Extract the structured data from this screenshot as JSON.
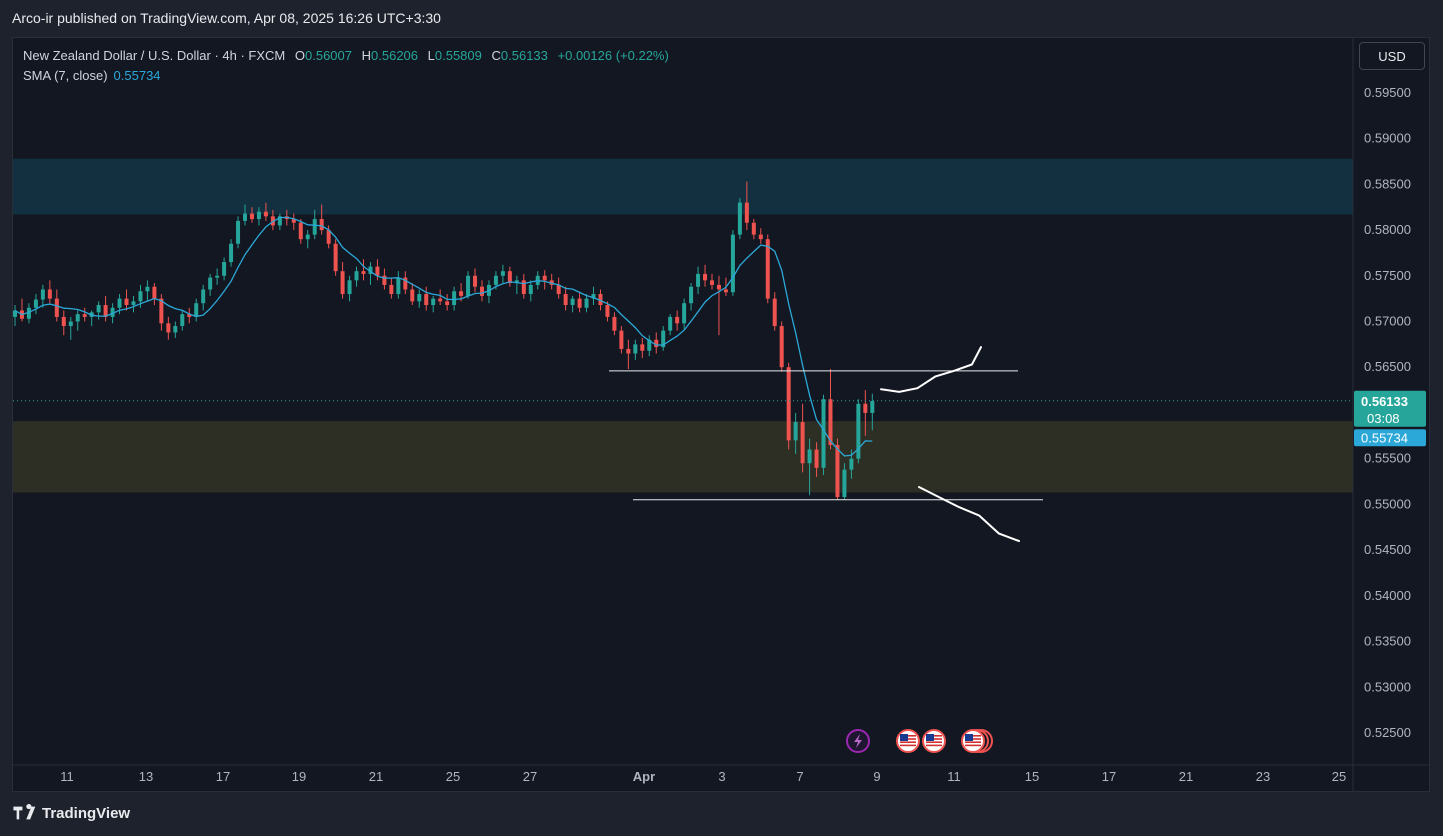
{
  "header": {
    "publish_text": "Arco-ir published on TradingView.com, Apr 08, 2025 16:26 UTC+3:30"
  },
  "legend": {
    "symbol": "New Zealand Dollar / U.S. Dollar · 4h · FXCM",
    "open_label": "O",
    "open": "0.56007",
    "high_label": "H",
    "high": "0.56206",
    "low_label": "L",
    "low": "0.55809",
    "close_label": "C",
    "close": "0.56133",
    "change": "+0.00126 (+0.22%)",
    "sma_label": "SMA (7, close)",
    "sma_value": "0.55734"
  },
  "currency_button": "USD",
  "footer": {
    "brand": "TradingView"
  },
  "colors": {
    "bg": "#131722",
    "up": "#26a69a",
    "down": "#ef5350",
    "sma": "#2ba8d8",
    "supply_zone": "#12303f",
    "demand_zone": "#2d2e24"
  },
  "chart_data": {
    "type": "candlestick",
    "timeframe": "4h",
    "y_axis": {
      "range": [
        0.5215,
        0.601
      ],
      "ticks": [
        "0.59500",
        "0.59000",
        "0.58500",
        "0.58000",
        "0.57500",
        "0.57000",
        "0.56500",
        "0.56000",
        "0.55500",
        "0.55000",
        "0.54500",
        "0.54000",
        "0.53500",
        "0.53000",
        "0.52500"
      ]
    },
    "x_axis": {
      "ticks": [
        "11",
        "13",
        "17",
        "19",
        "21",
        "25",
        "27",
        "Apr",
        "3",
        "7",
        "9",
        "11",
        "15",
        "17",
        "21",
        "23",
        "25"
      ]
    },
    "price_label": {
      "price": "0.56133",
      "countdown": "03:08"
    },
    "sma_label": "0.55734",
    "zones": [
      {
        "name": "supply",
        "top": 0.5878,
        "bottom": 0.5817
      },
      {
        "name": "demand",
        "top": 0.5591,
        "bottom": 0.5513
      }
    ],
    "levels": [
      {
        "name": "resistance",
        "price": 0.5646
      },
      {
        "name": "support",
        "price": 0.5505
      }
    ],
    "projection": {
      "up_path": [
        [
          0,
          0.5626
        ],
        [
          1,
          0.5623
        ],
        [
          2,
          0.5627
        ],
        [
          3,
          0.564
        ],
        [
          4,
          0.5646
        ],
        [
          5,
          0.5653
        ],
        [
          5.5,
          0.5672
        ]
      ],
      "down_path": [
        [
          0,
          0.5519
        ],
        [
          1,
          0.5508
        ],
        [
          2,
          0.5497
        ],
        [
          3,
          0.5488
        ],
        [
          4,
          0.5468
        ],
        [
          5,
          0.546
        ]
      ]
    },
    "events": [
      "lightning",
      "us-flag",
      "us-flag",
      "us-flag-stack"
    ],
    "candles": [
      [
        0.5705,
        0.5718,
        0.5695,
        0.5712
      ],
      [
        0.5712,
        0.5725,
        0.57,
        0.5703
      ],
      [
        0.5703,
        0.572,
        0.5698,
        0.5715
      ],
      [
        0.5715,
        0.573,
        0.5708,
        0.5724
      ],
      [
        0.5724,
        0.574,
        0.5715,
        0.5735
      ],
      [
        0.5735,
        0.5745,
        0.572,
        0.5725
      ],
      [
        0.5725,
        0.5735,
        0.57,
        0.5705
      ],
      [
        0.5705,
        0.5712,
        0.5685,
        0.5695
      ],
      [
        0.5695,
        0.5705,
        0.568,
        0.57
      ],
      [
        0.57,
        0.5712,
        0.569,
        0.5708
      ],
      [
        0.5708,
        0.5715,
        0.57,
        0.5705
      ],
      [
        0.5705,
        0.5712,
        0.5695,
        0.571
      ],
      [
        0.571,
        0.5722,
        0.5702,
        0.5718
      ],
      [
        0.5718,
        0.5728,
        0.57,
        0.5705
      ],
      [
        0.5705,
        0.572,
        0.5698,
        0.5715
      ],
      [
        0.5715,
        0.573,
        0.5708,
        0.5725
      ],
      [
        0.5725,
        0.5735,
        0.5712,
        0.5718
      ],
      [
        0.5718,
        0.5728,
        0.571,
        0.5722
      ],
      [
        0.5722,
        0.574,
        0.5715,
        0.5733
      ],
      [
        0.5733,
        0.5745,
        0.5722,
        0.5738
      ],
      [
        0.5738,
        0.5742,
        0.5718,
        0.5725
      ],
      [
        0.5725,
        0.573,
        0.569,
        0.5698
      ],
      [
        0.5698,
        0.5705,
        0.568,
        0.5688
      ],
      [
        0.5688,
        0.57,
        0.5682,
        0.5695
      ],
      [
        0.5695,
        0.5712,
        0.569,
        0.5708
      ],
      [
        0.5708,
        0.5715,
        0.5698,
        0.5705
      ],
      [
        0.5705,
        0.5725,
        0.57,
        0.572
      ],
      [
        0.572,
        0.574,
        0.5712,
        0.5735
      ],
      [
        0.5735,
        0.5752,
        0.5728,
        0.5748
      ],
      [
        0.5748,
        0.5758,
        0.574,
        0.575
      ],
      [
        0.575,
        0.577,
        0.5745,
        0.5765
      ],
      [
        0.5765,
        0.579,
        0.576,
        0.5785
      ],
      [
        0.5785,
        0.5815,
        0.578,
        0.581
      ],
      [
        0.581,
        0.5828,
        0.5805,
        0.5818
      ],
      [
        0.5818,
        0.5825,
        0.5808,
        0.5812
      ],
      [
        0.5812,
        0.5825,
        0.5805,
        0.582
      ],
      [
        0.582,
        0.583,
        0.581,
        0.5815
      ],
      [
        0.5815,
        0.5822,
        0.58,
        0.5805
      ],
      [
        0.5805,
        0.5818,
        0.58,
        0.5815
      ],
      [
        0.5815,
        0.5822,
        0.5805,
        0.5812
      ],
      [
        0.5812,
        0.5818,
        0.58,
        0.5808
      ],
      [
        0.5808,
        0.5812,
        0.5785,
        0.579
      ],
      [
        0.579,
        0.58,
        0.578,
        0.5795
      ],
      [
        0.5795,
        0.5822,
        0.579,
        0.5812
      ],
      [
        0.5812,
        0.5828,
        0.5795,
        0.58
      ],
      [
        0.58,
        0.5805,
        0.578,
        0.5785
      ],
      [
        0.5785,
        0.579,
        0.575,
        0.5755
      ],
      [
        0.5755,
        0.5765,
        0.5725,
        0.573
      ],
      [
        0.573,
        0.575,
        0.5722,
        0.5745
      ],
      [
        0.5745,
        0.576,
        0.5738,
        0.5755
      ],
      [
        0.5755,
        0.5768,
        0.5745,
        0.5752
      ],
      [
        0.5752,
        0.5765,
        0.574,
        0.576
      ],
      [
        0.576,
        0.5768,
        0.5745,
        0.575
      ],
      [
        0.575,
        0.5758,
        0.5735,
        0.574
      ],
      [
        0.574,
        0.5748,
        0.5725,
        0.573
      ],
      [
        0.573,
        0.5755,
        0.5725,
        0.5748
      ],
      [
        0.5748,
        0.5755,
        0.573,
        0.5735
      ],
      [
        0.5735,
        0.5742,
        0.5718,
        0.5722
      ],
      [
        0.5722,
        0.5735,
        0.5715,
        0.573
      ],
      [
        0.573,
        0.5738,
        0.5712,
        0.5718
      ],
      [
        0.5718,
        0.5728,
        0.571,
        0.5725
      ],
      [
        0.5725,
        0.5735,
        0.5718,
        0.5722
      ],
      [
        0.5722,
        0.573,
        0.5712,
        0.5718
      ],
      [
        0.5718,
        0.5738,
        0.5712,
        0.5733
      ],
      [
        0.5733,
        0.5742,
        0.5722,
        0.5728
      ],
      [
        0.5728,
        0.5755,
        0.5725,
        0.575
      ],
      [
        0.575,
        0.5758,
        0.5732,
        0.5738
      ],
      [
        0.5738,
        0.5745,
        0.5722,
        0.5728
      ],
      [
        0.5728,
        0.5745,
        0.572,
        0.574
      ],
      [
        0.574,
        0.5755,
        0.5735,
        0.575
      ],
      [
        0.575,
        0.5762,
        0.5742,
        0.5755
      ],
      [
        0.5755,
        0.576,
        0.5738,
        0.5742
      ],
      [
        0.5742,
        0.575,
        0.573,
        0.5745
      ],
      [
        0.5745,
        0.5752,
        0.5725,
        0.573
      ],
      [
        0.573,
        0.5745,
        0.5722,
        0.574
      ],
      [
        0.574,
        0.5755,
        0.5735,
        0.575
      ],
      [
        0.575,
        0.5756,
        0.5735,
        0.5745
      ],
      [
        0.5745,
        0.5752,
        0.5735,
        0.574
      ],
      [
        0.574,
        0.5748,
        0.5725,
        0.573
      ],
      [
        0.573,
        0.5738,
        0.5712,
        0.5718
      ],
      [
        0.5718,
        0.5728,
        0.571,
        0.5725
      ],
      [
        0.5725,
        0.5732,
        0.571,
        0.5715
      ],
      [
        0.5715,
        0.573,
        0.571,
        0.5725
      ],
      [
        0.5725,
        0.5738,
        0.5718,
        0.573
      ],
      [
        0.573,
        0.5735,
        0.5712,
        0.5718
      ],
      [
        0.5718,
        0.5722,
        0.57,
        0.5705
      ],
      [
        0.5705,
        0.571,
        0.5685,
        0.569
      ],
      [
        0.569,
        0.5695,
        0.5665,
        0.567
      ],
      [
        0.567,
        0.568,
        0.5648,
        0.5665
      ],
      [
        0.5665,
        0.568,
        0.5658,
        0.5675
      ],
      [
        0.5675,
        0.5682,
        0.566,
        0.5668
      ],
      [
        0.5668,
        0.5685,
        0.5662,
        0.568
      ],
      [
        0.568,
        0.5688,
        0.5665,
        0.5672
      ],
      [
        0.5672,
        0.5695,
        0.5668,
        0.569
      ],
      [
        0.569,
        0.5708,
        0.5685,
        0.5705
      ],
      [
        0.5705,
        0.5712,
        0.569,
        0.5698
      ],
      [
        0.5698,
        0.5725,
        0.5692,
        0.572
      ],
      [
        0.572,
        0.5742,
        0.5712,
        0.5738
      ],
      [
        0.5738,
        0.576,
        0.573,
        0.5752
      ],
      [
        0.5752,
        0.5762,
        0.5738,
        0.5745
      ],
      [
        0.5745,
        0.5752,
        0.5735,
        0.574
      ],
      [
        0.574,
        0.575,
        0.5685,
        0.5735
      ],
      [
        0.5735,
        0.5748,
        0.5728,
        0.5732
      ],
      [
        0.5732,
        0.58,
        0.5728,
        0.5795
      ],
      [
        0.5795,
        0.5835,
        0.579,
        0.583
      ],
      [
        0.583,
        0.5853,
        0.58,
        0.5808
      ],
      [
        0.5808,
        0.5812,
        0.579,
        0.5795
      ],
      [
        0.5795,
        0.5802,
        0.5785,
        0.579
      ],
      [
        0.579,
        0.5795,
        0.572,
        0.5725
      ],
      [
        0.5725,
        0.5732,
        0.569,
        0.5695
      ],
      [
        0.5695,
        0.57,
        0.5645,
        0.565
      ],
      [
        0.565,
        0.5655,
        0.556,
        0.557
      ],
      [
        0.557,
        0.56,
        0.5555,
        0.559
      ],
      [
        0.559,
        0.561,
        0.5535,
        0.5545
      ],
      [
        0.5545,
        0.5572,
        0.551,
        0.556
      ],
      [
        0.556,
        0.5568,
        0.553,
        0.554
      ],
      [
        0.554,
        0.562,
        0.5532,
        0.5615
      ],
      [
        0.5615,
        0.5648,
        0.556,
        0.5565
      ],
      [
        0.5565,
        0.5572,
        0.5505,
        0.5508
      ],
      [
        0.5508,
        0.5545,
        0.5505,
        0.5538
      ],
      [
        0.5538,
        0.556,
        0.5528,
        0.555
      ],
      [
        0.555,
        0.5615,
        0.5545,
        0.561
      ],
      [
        0.561,
        0.5625,
        0.5575,
        0.56
      ],
      [
        0.56,
        0.5621,
        0.5581,
        0.5613
      ]
    ]
  }
}
